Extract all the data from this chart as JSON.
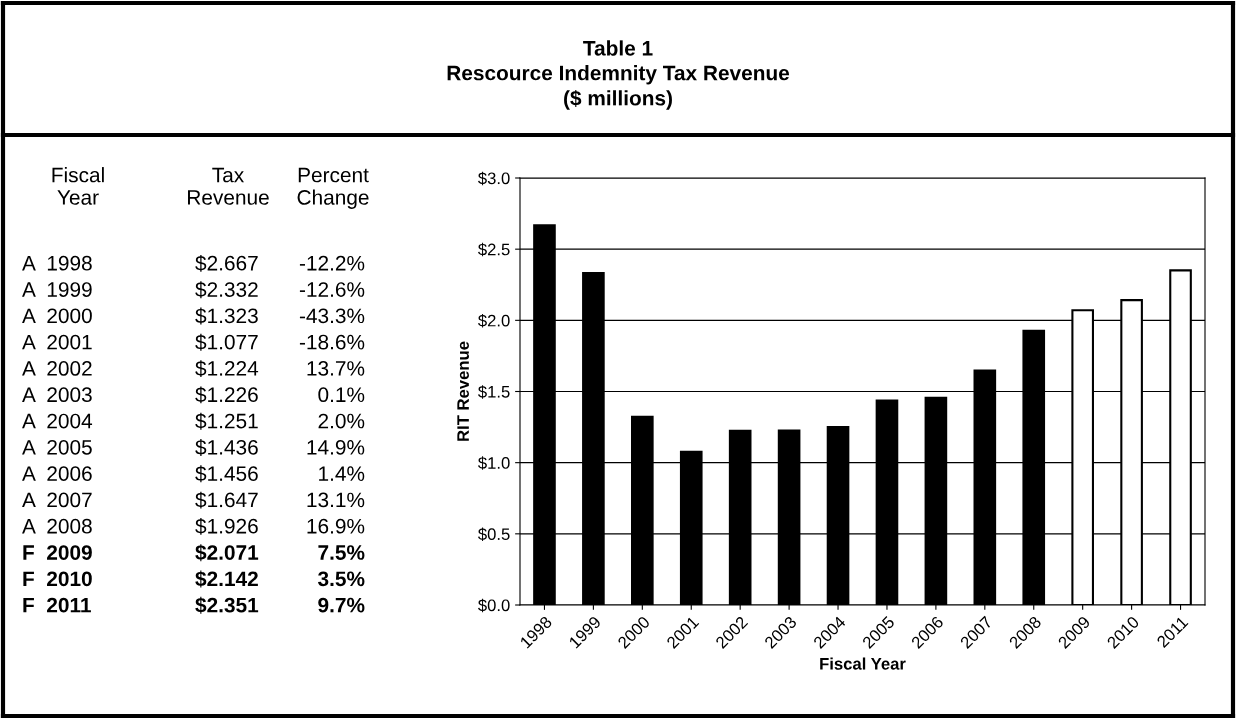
{
  "chart_data": [
    {
      "type": "other",
      "categories": [
        "Fiscal\nYear",
        "Tax\nRevenue",
        "Percent\nChange"
      ],
      "annotations": [
        "A  1998",
        "$2.667",
        "-12.2%",
        "A  1999",
        "$2.332",
        "-12.6%",
        "A  2000",
        "$1.323",
        "-43.3%",
        "A  2001",
        "$1.077",
        "-18.6%",
        "A  2002",
        "$1.224",
        "13.7%",
        "A  2003",
        "$1.226",
        "0.1%",
        "A  2004",
        "$1.251",
        "2.0%",
        "A  2005",
        "$1.436",
        "14.9%",
        "A  2006",
        "$1.456",
        "1.4%",
        "A  2007",
        "$1.647",
        "13.1%",
        "A  2008",
        "$1.926",
        "16.9%",
        "F  2009",
        "$2.071",
        "7.5%",
        "F  2010",
        "$2.142",
        "3.5%",
        "F  2011",
        "$2.351",
        "9.7%"
      ]
    },
    {
      "type": "bar",
      "title": "Table 1\nRescource Indemnity Tax Revenue\n($ millions)",
      "xlabel": "Fiscal Year",
      "ylabel": "RIT Revenue",
      "categories": [
        "1998",
        "1999",
        "2000",
        "2001",
        "2002",
        "2003",
        "2004",
        "2005",
        "2006",
        "2007",
        "2008",
        "2009",
        "2010",
        "2011"
      ],
      "values": [
        2.667,
        2.332,
        1.323,
        1.077,
        1.224,
        1.226,
        1.251,
        1.436,
        1.456,
        1.647,
        1.926,
        2.071,
        2.142,
        2.351
      ],
      "colors": [
        "#000000",
        "#000000",
        "#000000",
        "#000000",
        "#000000",
        "#000000",
        "#000000",
        "#000000",
        "#000000",
        "#000000",
        "#000000",
        "#ffffff",
        "#ffffff",
        "#ffffff"
      ],
      "ylim": [
        0,
        3
      ],
      "yticks": [
        {
          "value": 0,
          "label": "$0.0"
        },
        {
          "value": 0.5,
          "label": "$0.5"
        },
        {
          "value": 1,
          "label": "$1.0"
        },
        {
          "value": 1.5,
          "label": "$1.5"
        },
        {
          "value": 2,
          "label": "$2.0"
        },
        {
          "value": 2.5,
          "label": "$2.5"
        },
        {
          "value": 3,
          "label": "$3.0"
        }
      ],
      "grid": "y"
    }
  ]
}
